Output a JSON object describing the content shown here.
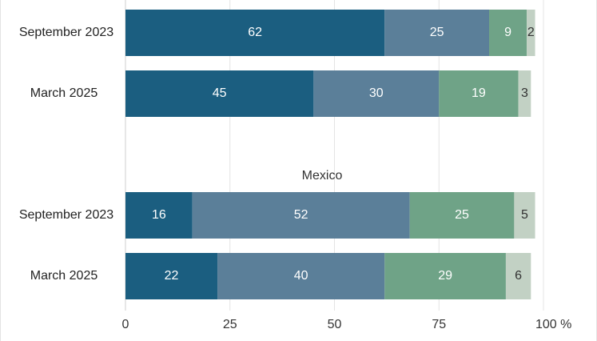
{
  "chart_data": {
    "type": "bar",
    "orientation": "horizontal",
    "stacked": true,
    "xlim": [
      0,
      100
    ],
    "x_ticks": [
      "0",
      "25",
      "50",
      "75",
      "100 %"
    ],
    "grid": true,
    "groups": [
      {
        "title": "",
        "rows": [
          {
            "label": "September 2023",
            "values": [
              62,
              25,
              9,
              2
            ],
            "data_labels": [
              "62",
              "25",
              "9",
              "2"
            ]
          },
          {
            "label": "March 2025",
            "values": [
              45,
              30,
              19,
              3
            ],
            "data_labels": [
              "45",
              "30",
              "19",
              "3"
            ]
          }
        ]
      },
      {
        "title": "Mexico",
        "rows": [
          {
            "label": "September 2023",
            "values": [
              16,
              52,
              25,
              5
            ],
            "data_labels": [
              "16",
              "52",
              "25",
              "5"
            ]
          },
          {
            "label": "March 2025",
            "values": [
              22,
              40,
              29,
              6
            ],
            "data_labels": [
              "22",
              "40",
              "29",
              "6"
            ]
          }
        ]
      }
    ],
    "segment_colors": [
      "#1b5e80",
      "#5b7f99",
      "#6fa387",
      "#c2d1c4"
    ],
    "label_colors": [
      "#ffffff",
      "#ffffff",
      "#ffffff",
      "#333333"
    ]
  }
}
